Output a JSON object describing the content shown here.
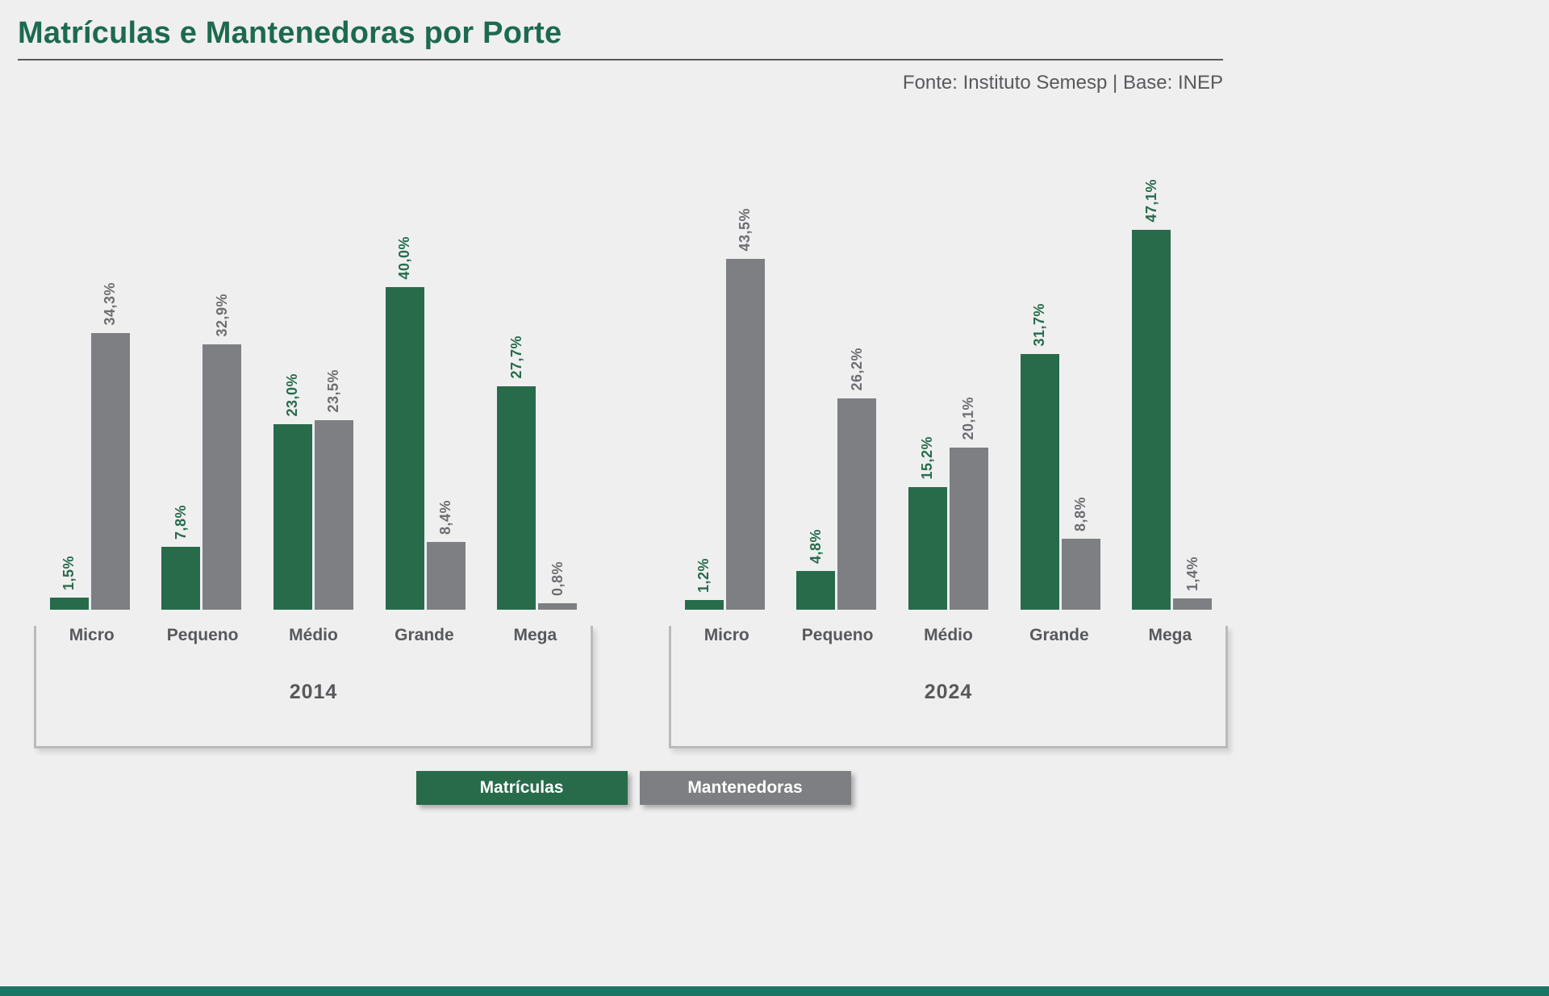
{
  "header": {
    "title": "Matrículas e Mantenedoras por Porte",
    "source": "Fonte: Instituto Semesp | Base: INEP"
  },
  "legend": [
    {
      "key": "matriculas",
      "label": "Matrículas",
      "color": "#276b4b",
      "label_color": "#276b4b"
    },
    {
      "key": "mantenedoras",
      "label": "Mantenedoras",
      "color": "#7d7f82",
      "label_color": "#6d6e71"
    }
  ],
  "colors": {
    "title_green": "#1d6a4e",
    "bar_green": "#276b4b",
    "bar_gray": "#7d7f82",
    "text_gray": "#58595b",
    "footer_strip": "#1b7565",
    "background": "#efeff0"
  },
  "chart_data": {
    "type": "bar",
    "title": "Matrículas e Mantenedoras por Porte",
    "categories": [
      "Micro",
      "Pequeno",
      "Médio",
      "Grande",
      "Mega"
    ],
    "ylim": [
      0,
      50
    ],
    "grid": false,
    "legend_position": "bottom",
    "value_label_rotation": 90,
    "groups": [
      {
        "year": "2014",
        "series": [
          {
            "name": "Matrículas",
            "values": [
              1.5,
              7.8,
              23.0,
              40.0,
              27.7
            ],
            "labels": [
              "1,5%",
              "7,8%",
              "23,0%",
              "40,0%",
              "27,7%"
            ]
          },
          {
            "name": "Mantenedoras",
            "values": [
              34.3,
              32.9,
              23.5,
              8.4,
              0.8
            ],
            "labels": [
              "34,3%",
              "32,9%",
              "23,5%",
              "8,4%",
              "0,8%"
            ]
          }
        ]
      },
      {
        "year": "2024",
        "series": [
          {
            "name": "Matrículas",
            "values": [
              1.2,
              4.8,
              15.2,
              31.7,
              47.1
            ],
            "labels": [
              "1,2%",
              "4,8%",
              "15,2%",
              "31,7%",
              "47,1%"
            ]
          },
          {
            "name": "Mantenedoras",
            "values": [
              43.5,
              26.2,
              20.1,
              8.8,
              1.4
            ],
            "labels": [
              "43,5%",
              "26,2%",
              "20,1%",
              "8,8%",
              "1,4%"
            ]
          }
        ]
      }
    ]
  }
}
